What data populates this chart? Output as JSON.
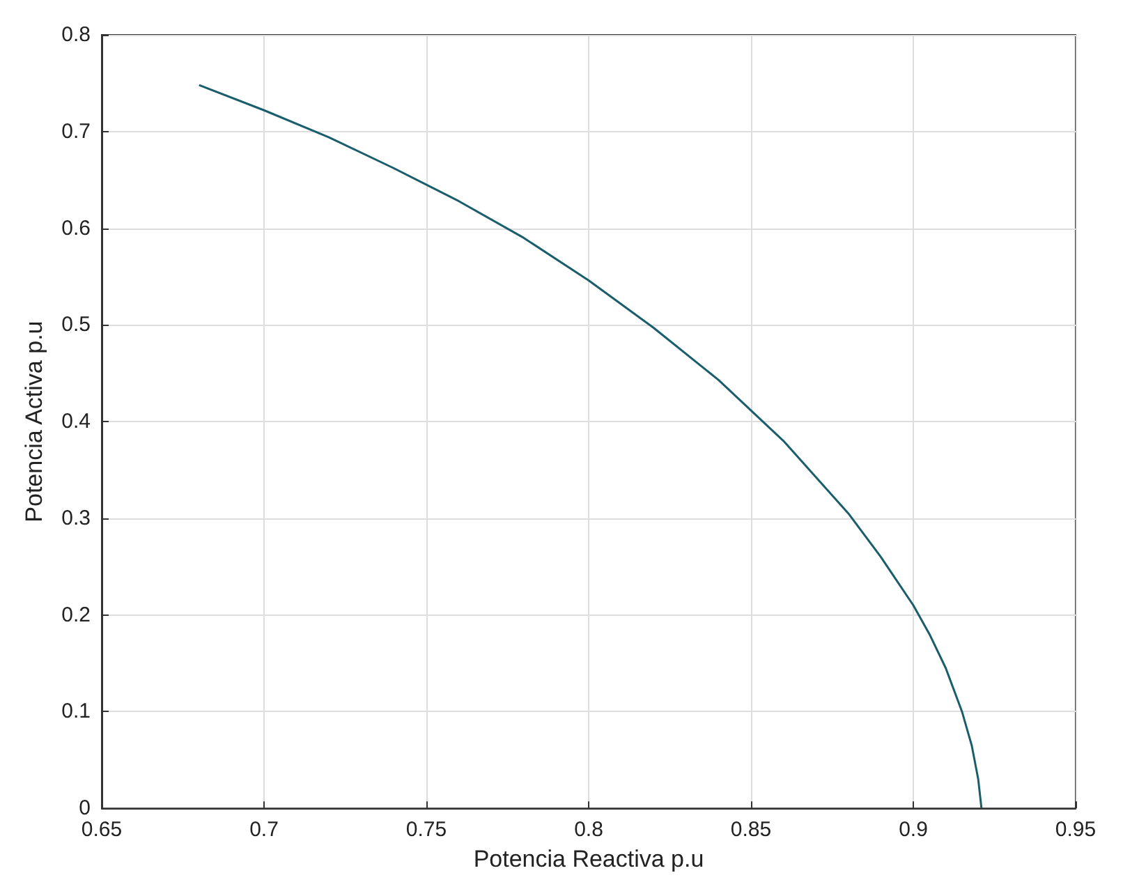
{
  "chart_data": {
    "type": "line",
    "xlabel": "Potencia Reactiva p.u",
    "ylabel": "Potencia Activa p.u",
    "x": [
      0.68,
      0.7,
      0.72,
      0.74,
      0.76,
      0.78,
      0.8,
      0.82,
      0.84,
      0.86,
      0.88,
      0.89,
      0.9,
      0.905,
      0.91,
      0.915,
      0.918,
      0.92,
      0.921
    ],
    "series": [
      {
        "color": "#1b5e6b",
        "values": [
          0.748,
          0.722,
          0.694,
          0.662,
          0.628,
          0.59,
          0.546,
          0.497,
          0.443,
          0.38,
          0.305,
          0.26,
          0.21,
          0.18,
          0.145,
          0.1,
          0.065,
          0.03,
          0
        ]
      }
    ],
    "xlim": [
      0.65,
      0.95
    ],
    "xticks": [
      0.65,
      0.7,
      0.75,
      0.8,
      0.85,
      0.9,
      0.95
    ],
    "ylim": [
      0,
      0.8
    ],
    "yticks": [
      0,
      0.1,
      0.2,
      0.3,
      0.4,
      0.5,
      0.6,
      0.7,
      0.8
    ],
    "grid": true,
    "marker": "none",
    "line_style": "solid"
  }
}
